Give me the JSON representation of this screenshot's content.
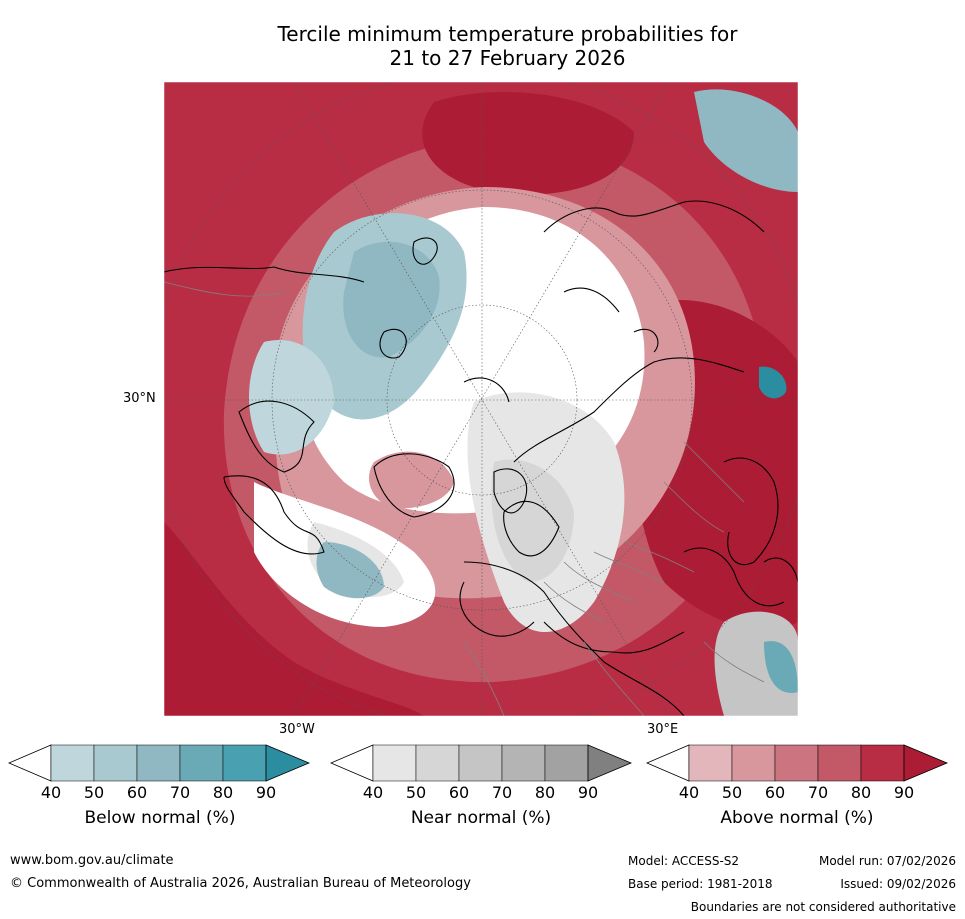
{
  "title": {
    "line1": "Tercile minimum temperature probabilities for",
    "line2": "21 to 27 February 2026"
  },
  "map": {
    "projection": "north-polar-stereographic",
    "lat_label": "30°N",
    "lon_labels": [
      "30°W",
      "30°E"
    ],
    "colors": {
      "above": [
        "#e2b6bb",
        "#d8969d",
        "#cc7480",
        "#c35866",
        "#b92d44",
        "#ad1c35"
      ],
      "near": [
        "#e6e6e6",
        "#d6d6d6",
        "#c5c5c5",
        "#b4b4b4",
        "#a2a2a2",
        "#808080"
      ],
      "below": [
        "#bfd7dc",
        "#a9c9d0",
        "#90b8c3",
        "#6aa9b6",
        "#49a0b0",
        "#2a8da0"
      ]
    }
  },
  "colorbars": [
    {
      "label": "Below normal (%)",
      "ticks": [
        "40",
        "50",
        "60",
        "70",
        "80",
        "90"
      ],
      "colors": [
        "#bfd7dc",
        "#a9c9d0",
        "#90b8c3",
        "#6aa9b6",
        "#49a0b0",
        "#2a8da0"
      ]
    },
    {
      "label": "Near normal (%)",
      "ticks": [
        "40",
        "50",
        "60",
        "70",
        "80",
        "90"
      ],
      "colors": [
        "#e6e6e6",
        "#d6d6d6",
        "#c5c5c5",
        "#b4b4b4",
        "#a2a2a2",
        "#808080"
      ]
    },
    {
      "label": "Above normal (%)",
      "ticks": [
        "40",
        "50",
        "60",
        "70",
        "80",
        "90"
      ],
      "colors": [
        "#e2b6bb",
        "#d8969d",
        "#cc7480",
        "#c35866",
        "#b92d44",
        "#ad1c35"
      ]
    }
  ],
  "footer": {
    "url": "www.bom.gov.au/climate",
    "copyright": "© Commonwealth of Australia 2026, Australian Bureau of Meteorology",
    "model": "Model: ACCESS-S2",
    "base_period": "Base period: 1981-2018",
    "model_run": "Model run: 07/02/2026",
    "issued": "Issued: 09/02/2026",
    "disclaimer": "Boundaries are not considered authoritative"
  }
}
